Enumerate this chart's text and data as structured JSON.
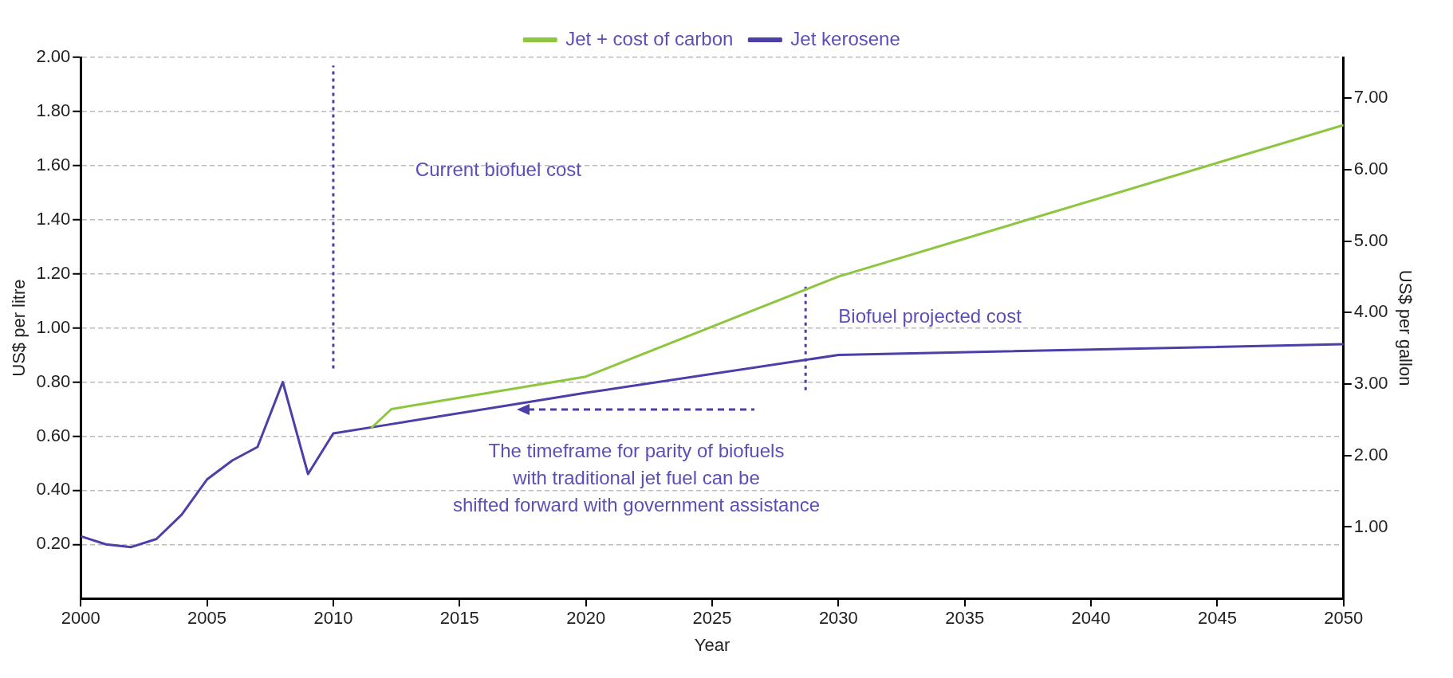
{
  "chart_data": {
    "type": "line",
    "xlabel": "Year",
    "ylabel": "US$ per litre",
    "y2label": "US$ per gallon",
    "series": [
      {
        "name": "Jet + cost of carbon",
        "color": "#8dc63f",
        "x": [
          2011.5,
          2012.3,
          2020,
          2030,
          2050
        ],
        "values": [
          0.63,
          0.7,
          0.82,
          1.19,
          1.75
        ]
      },
      {
        "name": "Jet kerosene",
        "color": "#4b3fa8",
        "x": [
          2000,
          2001,
          2002,
          2003,
          2004,
          2005,
          2006,
          2007,
          2008,
          2009,
          2010,
          2012,
          2020,
          2030,
          2050
        ],
        "values": [
          0.23,
          0.2,
          0.19,
          0.22,
          0.31,
          0.44,
          0.51,
          0.56,
          0.8,
          0.46,
          0.61,
          0.64,
          0.76,
          0.9,
          0.94
        ]
      },
      {
        "color": "#4b3fa8",
        "line_style": "dotted",
        "x": [
          2010,
          2010
        ],
        "values": [
          0.85,
          1.97
        ]
      },
      {
        "color": "#4b3fa8",
        "line_style": "dotted",
        "x": [
          2028.7,
          2028.7
        ],
        "values": [
          0.77,
          1.16
        ]
      }
    ],
    "xlim": [
      2000,
      2050
    ],
    "xticks": [
      2000,
      2005,
      2010,
      2015,
      2020,
      2025,
      2030,
      2035,
      2040,
      2045,
      2050
    ],
    "ylim": [
      0,
      2
    ],
    "yticks": [
      {
        "value": 0.2,
        "label": "0.20"
      },
      {
        "value": 0.4,
        "label": "0.40"
      },
      {
        "value": 0.6,
        "label": "0.60"
      },
      {
        "value": 0.8,
        "label": "0.80"
      },
      {
        "value": 1,
        "label": "1.00"
      },
      {
        "value": 1.2,
        "label": "1.20"
      },
      {
        "value": 1.4,
        "label": "1.40"
      },
      {
        "value": 1.6,
        "label": "1.60"
      },
      {
        "value": 1.8,
        "label": "1.80"
      },
      {
        "value": 2,
        "label": "2.00"
      }
    ],
    "y2lim": [
      0,
      7.57
    ],
    "y2ticks": [
      {
        "value": 1,
        "label": "1.00"
      },
      {
        "value": 2,
        "label": "2.00"
      },
      {
        "value": 3,
        "label": "3.00"
      },
      {
        "value": 4,
        "label": "4.00"
      },
      {
        "value": 5,
        "label": "5.00"
      },
      {
        "value": 6,
        "label": "6.00"
      },
      {
        "value": 7,
        "label": "7.00"
      }
    ],
    "annotations": [
      "Current biofuel cost",
      "Biofuel projected cost",
      "The timeframe for parity of biofuels\nwith traditional jet fuel can be\nshifted forward with government assistance"
    ],
    "grid": "y",
    "legend": "top",
    "marker": "none",
    "line_style": "solid"
  }
}
